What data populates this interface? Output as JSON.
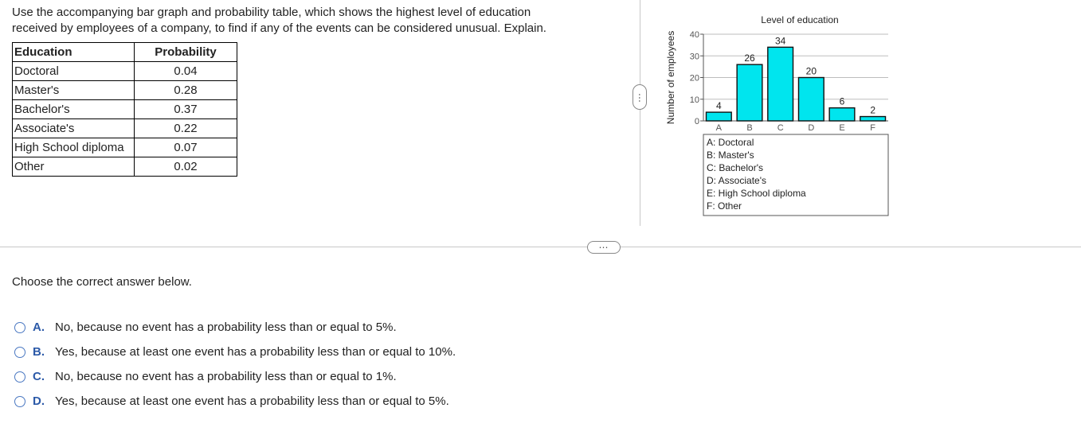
{
  "question": {
    "line1": "Use the accompanying bar graph and probability table, which shows the highest level of education",
    "line2": "received by employees of a company, to find if any of the events can be considered unusual. Explain."
  },
  "table": {
    "headers": [
      "Education",
      "Probability"
    ],
    "rows": [
      [
        "Doctoral",
        "0.04"
      ],
      [
        "Master's",
        "0.28"
      ],
      [
        "Bachelor's",
        "0.37"
      ],
      [
        "Associate's",
        "0.22"
      ],
      [
        "High School diploma",
        "0.07"
      ],
      [
        "Other",
        "0.02"
      ]
    ]
  },
  "controls": {
    "vertical_handle": "⋯",
    "horizontal_handle": "⋯"
  },
  "chart_data": {
    "type": "bar",
    "title": "Level of education",
    "ylabel": "Number of employees",
    "xlabel": "",
    "categories": [
      "A",
      "B",
      "C",
      "D",
      "E",
      "F"
    ],
    "values": [
      4,
      26,
      34,
      20,
      6,
      2
    ],
    "ylim": [
      0,
      40
    ],
    "yticks": [
      0,
      10,
      20,
      30,
      40
    ],
    "grid": true,
    "bar_color": "#00e5ee",
    "legend": [
      "A: Doctoral",
      "B: Master's",
      "C: Bachelor's",
      "D: Associate's",
      "E: High School diploma",
      "F: Other"
    ],
    "legend_placement": "bottom"
  },
  "prompt": "Choose the correct answer below.",
  "options": [
    {
      "letter": "A.",
      "text": "No, because no event has a probability less than or equal to 5%."
    },
    {
      "letter": "B.",
      "text": "Yes, because at least one event has a probability less than or equal to 10%."
    },
    {
      "letter": "C.",
      "text": "No, because no event has a probability less than or equal to 1%."
    },
    {
      "letter": "D.",
      "text": "Yes, because at least one event has a probability less than or equal to 5%."
    }
  ],
  "colors": {
    "accent": "#2c5aa8",
    "radio": "#4a78c2",
    "bar": "#00e5ee"
  }
}
